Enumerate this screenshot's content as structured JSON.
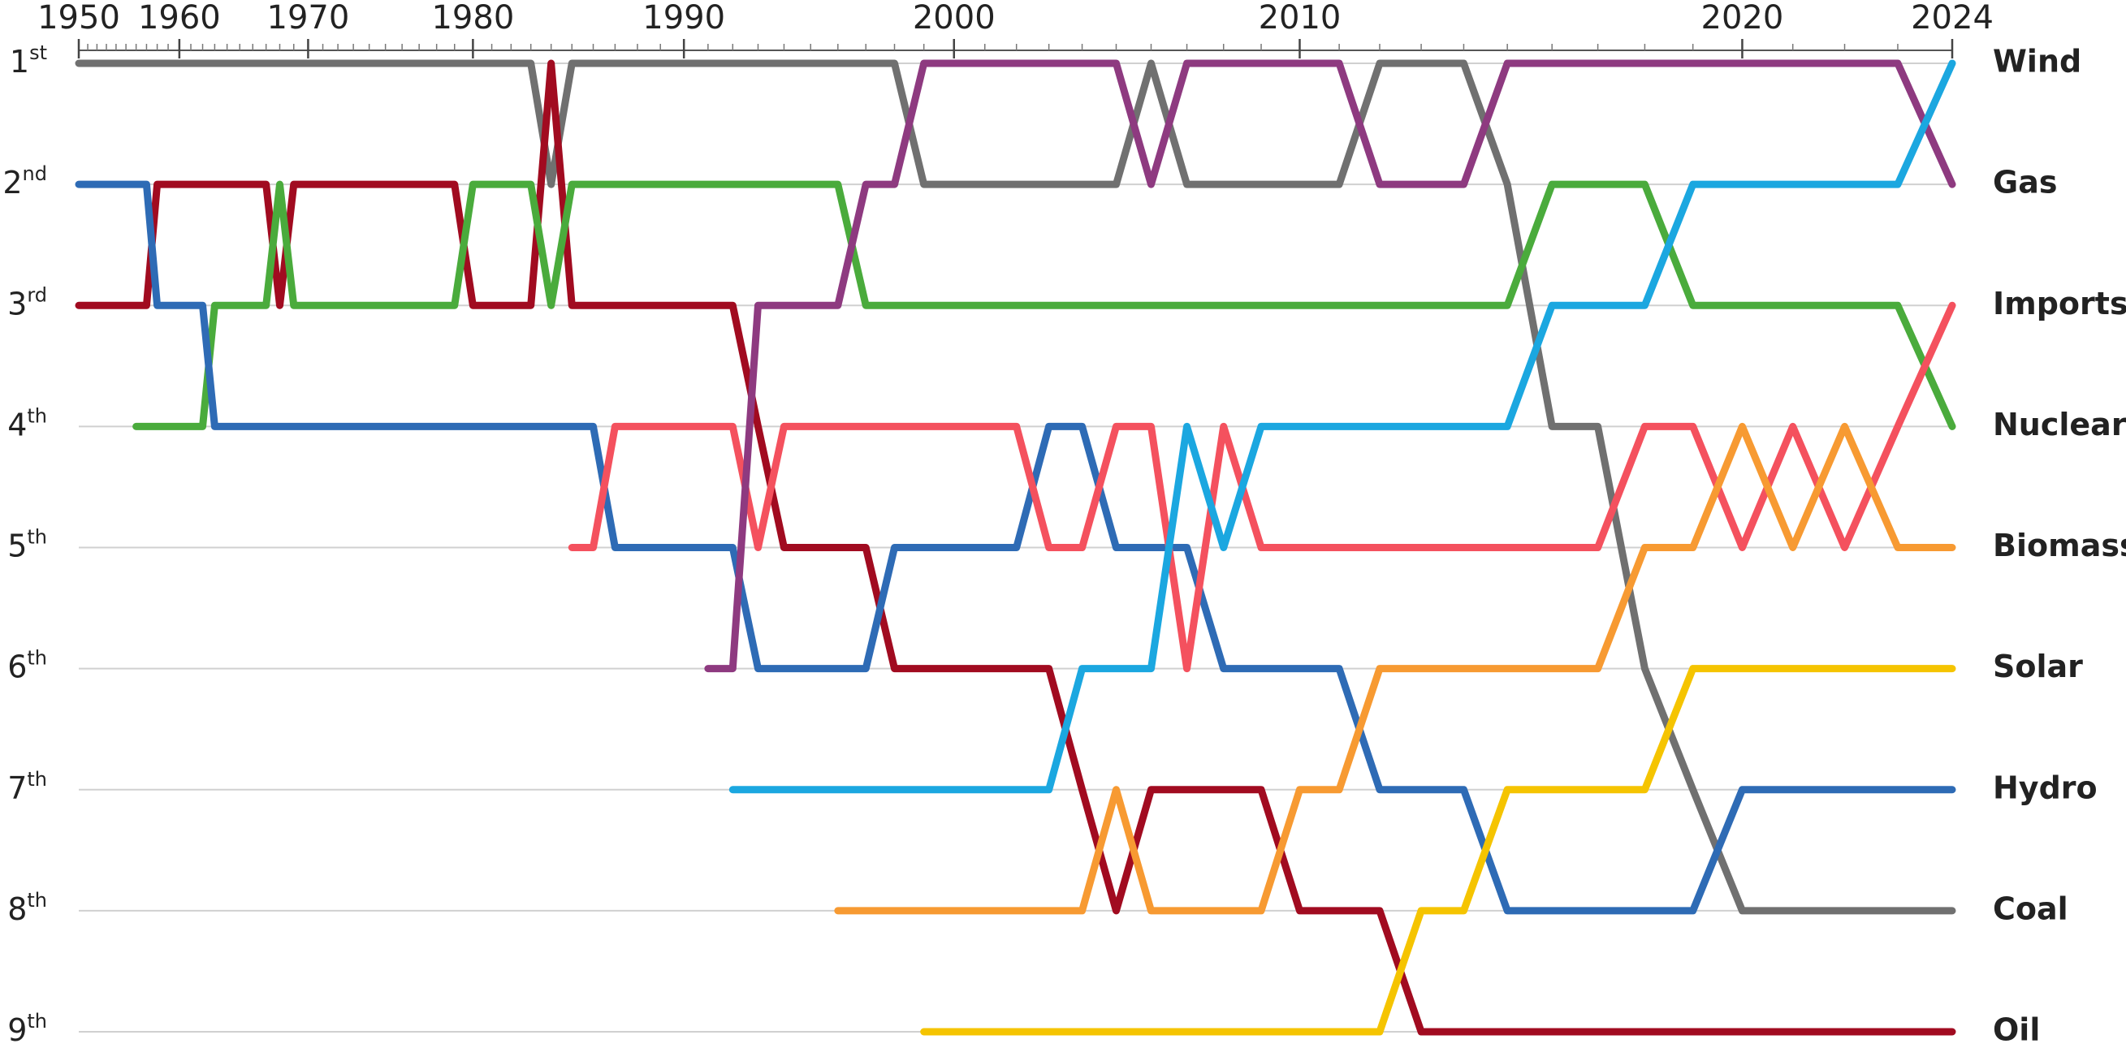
{
  "chart_data": {
    "type": "bump",
    "x": [
      1950,
      1951,
      1952,
      1953,
      1954,
      1955,
      1956,
      1957,
      1958,
      1959,
      1960,
      1961,
      1962,
      1963,
      1964,
      1965,
      1966,
      1967,
      1968,
      1969,
      1970,
      1971,
      1972,
      1973,
      1974,
      1975,
      1976,
      1977,
      1978,
      1979,
      1980,
      1981,
      1982,
      1983,
      1984,
      1985,
      1986,
      1987,
      1988,
      1989,
      1990,
      1991,
      1992,
      1993,
      1994,
      1995,
      1996,
      1997,
      1998,
      1999,
      2000,
      2001,
      2002,
      2003,
      2004,
      2005,
      2006,
      2007,
      2008,
      2009,
      2010,
      2011,
      2012,
      2013,
      2014,
      2015,
      2016,
      2017,
      2018,
      2019,
      2020,
      2021,
      2022,
      2023,
      2024
    ],
    "xlim": [
      1950,
      2024
    ],
    "xticks": [
      1950,
      1960,
      1970,
      1980,
      1990,
      2000,
      2010,
      2020,
      2024
    ],
    "ylim": [
      1,
      9
    ],
    "yticks": [
      {
        "value": 1,
        "label": "1st"
      },
      {
        "value": 2,
        "label": "2nd"
      },
      {
        "value": 3,
        "label": "3rd"
      },
      {
        "value": 4,
        "label": "4th"
      },
      {
        "value": 5,
        "label": "5th"
      },
      {
        "value": 6,
        "label": "6th"
      },
      {
        "value": 7,
        "label": "7th"
      },
      {
        "value": 8,
        "label": "8th"
      },
      {
        "value": 9,
        "label": "9th"
      }
    ],
    "grid": true,
    "series": [
      {
        "name": "Coal",
        "color": "#707070",
        "values": [
          1,
          1,
          1,
          1,
          1,
          1,
          1,
          1,
          1,
          1,
          1,
          1,
          1,
          1,
          1,
          1,
          1,
          1,
          1,
          1,
          1,
          1,
          1,
          1,
          1,
          1,
          1,
          1,
          1,
          1,
          1,
          1,
          1,
          1,
          2,
          1,
          1,
          1,
          1,
          1,
          1,
          1,
          1,
          1,
          1,
          1,
          1,
          1,
          1,
          2,
          2,
          2,
          2,
          2,
          2,
          2,
          1,
          2,
          2,
          2,
          2,
          2,
          1,
          1,
          1,
          2,
          4,
          4,
          6,
          7,
          8,
          8,
          8,
          8,
          8
        ]
      },
      {
        "name": "Oil",
        "color": "#a10b20",
        "values": [
          3,
          3,
          3,
          3,
          3,
          3,
          3,
          3,
          2,
          2,
          2,
          2,
          2,
          2,
          2,
          2,
          2,
          2,
          3,
          2,
          2,
          2,
          2,
          2,
          2,
          2,
          2,
          2,
          2,
          2,
          3,
          3,
          3,
          3,
          1,
          3,
          3,
          3,
          3,
          3,
          3,
          3,
          3,
          4,
          5,
          5,
          5,
          5,
          6,
          6,
          6,
          6,
          6,
          6,
          7,
          8,
          7,
          7,
          7,
          7,
          8,
          8,
          8,
          9,
          9,
          9,
          9,
          9,
          9,
          9,
          9,
          9,
          9,
          9,
          9
        ]
      },
      {
        "name": "Nuclear",
        "color": "#4aab3c",
        "values": [
          null,
          null,
          null,
          null,
          null,
          null,
          4,
          4,
          4,
          4,
          4,
          4,
          4,
          3,
          3,
          3,
          3,
          3,
          2,
          3,
          3,
          3,
          3,
          3,
          3,
          3,
          3,
          3,
          3,
          3,
          2,
          2,
          2,
          2,
          3,
          2,
          2,
          2,
          2,
          2,
          2,
          2,
          2,
          2,
          2,
          2,
          2,
          3,
          3,
          3,
          3,
          3,
          3,
          3,
          3,
          3,
          3,
          3,
          3,
          3,
          3,
          3,
          3,
          3,
          3,
          3,
          2,
          2,
          2,
          3,
          3,
          3,
          3,
          3,
          4
        ]
      },
      {
        "name": "Hydro",
        "color": "#2e6bb5",
        "values": [
          2,
          2,
          2,
          2,
          2,
          2,
          2,
          2,
          3,
          3,
          3,
          3,
          3,
          4,
          4,
          4,
          4,
          4,
          4,
          4,
          4,
          4,
          4,
          4,
          4,
          4,
          4,
          4,
          4,
          4,
          4,
          4,
          4,
          4,
          4,
          4,
          4,
          5,
          5,
          5,
          5,
          5,
          5,
          6,
          6,
          6,
          6,
          6,
          5,
          5,
          5,
          5,
          5,
          4,
          4,
          5,
          5,
          5,
          6,
          6,
          6,
          6,
          7,
          7,
          7,
          8,
          8,
          8,
          8,
          8,
          7,
          7,
          7,
          7,
          7
        ]
      },
      {
        "name": "Imports",
        "color": "#f4515e",
        "values": [
          null,
          null,
          null,
          null,
          null,
          null,
          null,
          null,
          null,
          null,
          null,
          null,
          null,
          null,
          null,
          null,
          null,
          null,
          null,
          null,
          null,
          null,
          null,
          null,
          null,
          null,
          null,
          null,
          null,
          null,
          null,
          null,
          null,
          null,
          null,
          5,
          5,
          4,
          4,
          4,
          4,
          4,
          4,
          5,
          4,
          4,
          4,
          4,
          4,
          4,
          4,
          4,
          4,
          5,
          5,
          4,
          4,
          6,
          4,
          5,
          5,
          5,
          5,
          5,
          5,
          5,
          5,
          5,
          4,
          4,
          5,
          4,
          5,
          4,
          3
        ]
      },
      {
        "name": "Gas",
        "color": "#8e3a80",
        "values": [
          null,
          null,
          null,
          null,
          null,
          null,
          null,
          null,
          null,
          null,
          null,
          null,
          null,
          null,
          null,
          null,
          null,
          null,
          null,
          null,
          null,
          null,
          null,
          null,
          null,
          null,
          null,
          null,
          null,
          null,
          null,
          null,
          null,
          null,
          null,
          null,
          null,
          null,
          null,
          null,
          null,
          6,
          6,
          3,
          3,
          3,
          3,
          2,
          2,
          1,
          1,
          1,
          1,
          1,
          1,
          1,
          2,
          1,
          1,
          1,
          1,
          1,
          2,
          2,
          2,
          1,
          1,
          1,
          1,
          1,
          1,
          1,
          1,
          1,
          2
        ]
      },
      {
        "name": "Wind",
        "color": "#1ba7e0",
        "values": [
          null,
          null,
          null,
          null,
          null,
          null,
          null,
          null,
          null,
          null,
          null,
          null,
          null,
          null,
          null,
          null,
          null,
          null,
          null,
          null,
          null,
          null,
          null,
          null,
          null,
          null,
          null,
          null,
          null,
          null,
          null,
          null,
          null,
          null,
          null,
          null,
          null,
          null,
          null,
          null,
          null,
          null,
          7,
          7,
          7,
          7,
          7,
          7,
          7,
          7,
          7,
          7,
          7,
          7,
          6,
          6,
          6,
          4,
          5,
          4,
          4,
          4,
          4,
          4,
          4,
          4,
          3,
          3,
          3,
          2,
          2,
          2,
          2,
          2,
          1
        ]
      },
      {
        "name": "Solar",
        "color": "#f5c400",
        "values": [
          null,
          null,
          null,
          null,
          null,
          null,
          null,
          null,
          null,
          null,
          null,
          null,
          null,
          null,
          null,
          null,
          null,
          null,
          null,
          null,
          null,
          null,
          null,
          null,
          null,
          null,
          null,
          null,
          null,
          null,
          null,
          null,
          null,
          null,
          null,
          null,
          null,
          null,
          null,
          null,
          null,
          null,
          null,
          null,
          null,
          null,
          null,
          null,
          null,
          9,
          9,
          9,
          9,
          9,
          9,
          9,
          9,
          9,
          9,
          9,
          9,
          9,
          9,
          8,
          8,
          7,
          7,
          7,
          7,
          6,
          6,
          6,
          6,
          6,
          6
        ]
      },
      {
        "name": "Biomass",
        "color": "#f79a32",
        "values": [
          null,
          null,
          null,
          null,
          null,
          null,
          null,
          null,
          null,
          null,
          null,
          null,
          null,
          null,
          null,
          null,
          null,
          null,
          null,
          null,
          null,
          null,
          null,
          null,
          null,
          null,
          null,
          null,
          null,
          null,
          null,
          null,
          null,
          null,
          null,
          null,
          null,
          null,
          null,
          null,
          null,
          null,
          null,
          null,
          null,
          null,
          8,
          8,
          8,
          8,
          8,
          8,
          8,
          8,
          8,
          7,
          8,
          8,
          8,
          8,
          7,
          7,
          6,
          6,
          6,
          6,
          6,
          6,
          5,
          5,
          4,
          5,
          4,
          5,
          5
        ]
      }
    ]
  }
}
